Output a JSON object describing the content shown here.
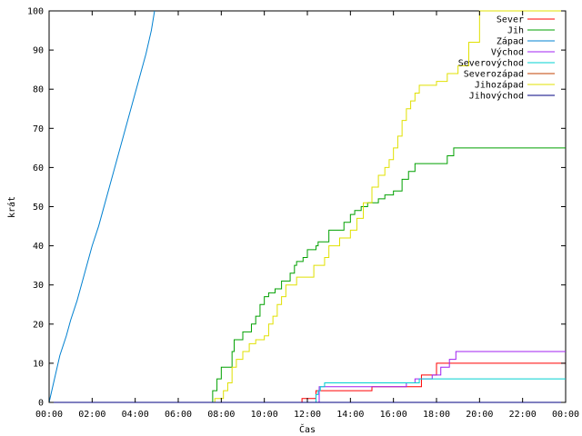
{
  "chart_data": {
    "type": "line",
    "xlabel": "Čas",
    "ylabel": "krát",
    "xlim": [
      0,
      24
    ],
    "ylim": [
      0,
      100
    ],
    "x_tick_labels": [
      "00:00",
      "02:00",
      "04:00",
      "06:00",
      "08:00",
      "10:00",
      "12:00",
      "14:00",
      "16:00",
      "18:00",
      "20:00",
      "22:00",
      "00:00"
    ],
    "y_tick_labels": [
      "0",
      "10",
      "20",
      "30",
      "40",
      "50",
      "60",
      "70",
      "80",
      "90",
      "100"
    ],
    "legend_position": "top-right",
    "grid": false,
    "series": [
      {
        "name": "Sever",
        "color": "#ff0000",
        "step": true,
        "x": [
          0,
          11.7,
          11.75,
          12.0,
          12.4,
          14.7,
          15.0,
          16.0,
          17.3,
          17.5,
          18.0,
          24
        ],
        "y": [
          0,
          0,
          1,
          1,
          3,
          3,
          4,
          4,
          7,
          7,
          10,
          10
        ]
      },
      {
        "name": "Jih",
        "color": "#00a000",
        "step": true,
        "x": [
          0,
          7.5,
          7.6,
          7.8,
          8.0,
          8.2,
          8.5,
          8.6,
          8.8,
          9.0,
          9.4,
          9.6,
          9.8,
          10.0,
          10.2,
          10.5,
          10.8,
          11.0,
          11.2,
          11.4,
          11.5,
          11.8,
          12.0,
          12.2,
          12.4,
          12.5,
          13.0,
          13.4,
          13.7,
          14.0,
          14.2,
          14.5,
          14.8,
          15.0,
          15.3,
          15.6,
          16.0,
          16.4,
          16.7,
          17.0,
          17.5,
          18.0,
          18.5,
          18.8,
          24
        ],
        "y": [
          0,
          0,
          3,
          6,
          9,
          9,
          13,
          16,
          16,
          18,
          20,
          22,
          25,
          27,
          28,
          29,
          31,
          31,
          33,
          35,
          36,
          37,
          39,
          39,
          40,
          41,
          44,
          44,
          46,
          48,
          49,
          50,
          51,
          51,
          52,
          53,
          54,
          57,
          59,
          61,
          61,
          61,
          63,
          65,
          65
        ]
      },
      {
        "name": "Západ",
        "color": "#0080d0",
        "step": false,
        "x": [
          0,
          0.25,
          0.5,
          0.8,
          1.0,
          1.3,
          1.5,
          1.8,
          2.0,
          2.3,
          2.5,
          2.8,
          3.0,
          3.3,
          3.5,
          3.8,
          4.0,
          4.3,
          4.5,
          4.75,
          4.9
        ],
        "y": [
          0,
          6,
          12,
          17,
          21,
          26,
          30,
          36,
          40,
          45,
          49,
          55,
          59,
          65,
          69,
          75,
          79,
          85,
          89,
          95,
          100
        ]
      },
      {
        "name": "Východ",
        "color": "#a020f0",
        "step": true,
        "x": [
          0,
          12.5,
          12.55,
          13.0,
          15.0,
          16.6,
          17.0,
          17.8,
          18.2,
          18.6,
          18.9,
          24
        ],
        "y": [
          0,
          0,
          4,
          4,
          4,
          5,
          6,
          7,
          9,
          11,
          13,
          13
        ]
      },
      {
        "name": "Severovýchod",
        "color": "#00d0d0",
        "step": true,
        "x": [
          0,
          12.3,
          12.4,
          12.5,
          12.6,
          12.8,
          17.2,
          24
        ],
        "y": [
          0,
          0,
          2,
          3,
          4,
          5,
          6,
          6
        ]
      },
      {
        "name": "Severozápad",
        "color": "#c04000",
        "step": true,
        "x": [
          0,
          24
        ],
        "y": [
          0,
          0
        ]
      },
      {
        "name": "Jihozápad",
        "color": "#e0e000",
        "step": true,
        "x": [
          0,
          7.6,
          7.7,
          8.0,
          8.1,
          8.3,
          8.5,
          8.7,
          9.0,
          9.3,
          9.6,
          9.8,
          10.0,
          10.2,
          10.4,
          10.6,
          10.8,
          11.0,
          11.2,
          11.5,
          12.0,
          12.3,
          12.8,
          13.0,
          13.5,
          14.0,
          14.3,
          14.6,
          15.0,
          15.3,
          15.6,
          15.8,
          16.0,
          16.2,
          16.4,
          16.6,
          16.8,
          17.0,
          17.2,
          17.5,
          18.0,
          18.5,
          19.0,
          19.5,
          20.0,
          24
        ],
        "y": [
          0,
          0,
          1,
          1,
          3,
          5,
          9,
          11,
          13,
          15,
          16,
          16,
          17,
          20,
          22,
          25,
          27,
          30,
          30,
          32,
          32,
          35,
          37,
          40,
          42,
          44,
          47,
          51,
          55,
          58,
          60,
          62,
          65,
          68,
          72,
          75,
          77,
          79,
          81,
          81,
          82,
          84,
          86,
          92,
          100,
          100
        ]
      },
      {
        "name": "Jihovýchod",
        "color": "#000080",
        "step": true,
        "x": [
          0,
          24
        ],
        "y": [
          0,
          0
        ]
      }
    ]
  }
}
